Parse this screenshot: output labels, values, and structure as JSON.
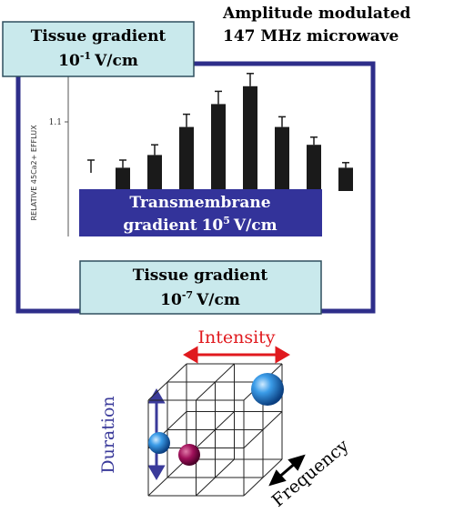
{
  "title": {
    "line1": "Amplitude modulated",
    "line2": "147 MHz microwave"
  },
  "tissue_top": {
    "label": "Tissue gradient",
    "base": "10",
    "exponent": "-1",
    "unit": "V/cm"
  },
  "transmembrane": {
    "label": "Transmembrane",
    "prefix": "gradient",
    "base": "10",
    "exponent": "5",
    "unit": "V/cm"
  },
  "tissue_bottom": {
    "label": "Tissue gradient",
    "base": "10",
    "exponent": "-7",
    "unit": "V/cm"
  },
  "chart_data": {
    "type": "bar",
    "y_label": "RELATIVE 45Ca2+ EFFLUX",
    "values": [
      1.0,
      1.01,
      1.035,
      1.09,
      1.135,
      1.17,
      1.09,
      1.055,
      1.01
    ],
    "errors": [
      0.025,
      0.015,
      0.02,
      0.025,
      0.025,
      0.025,
      0.02,
      0.015,
      0.01
    ],
    "ylim": [
      1.0,
      1.2
    ],
    "yticks": [
      1.1
    ],
    "color": "#1a1a1a"
  },
  "axes": {
    "intensity": "Intensity",
    "duration": "Duration",
    "frequency": "Frequency"
  }
}
